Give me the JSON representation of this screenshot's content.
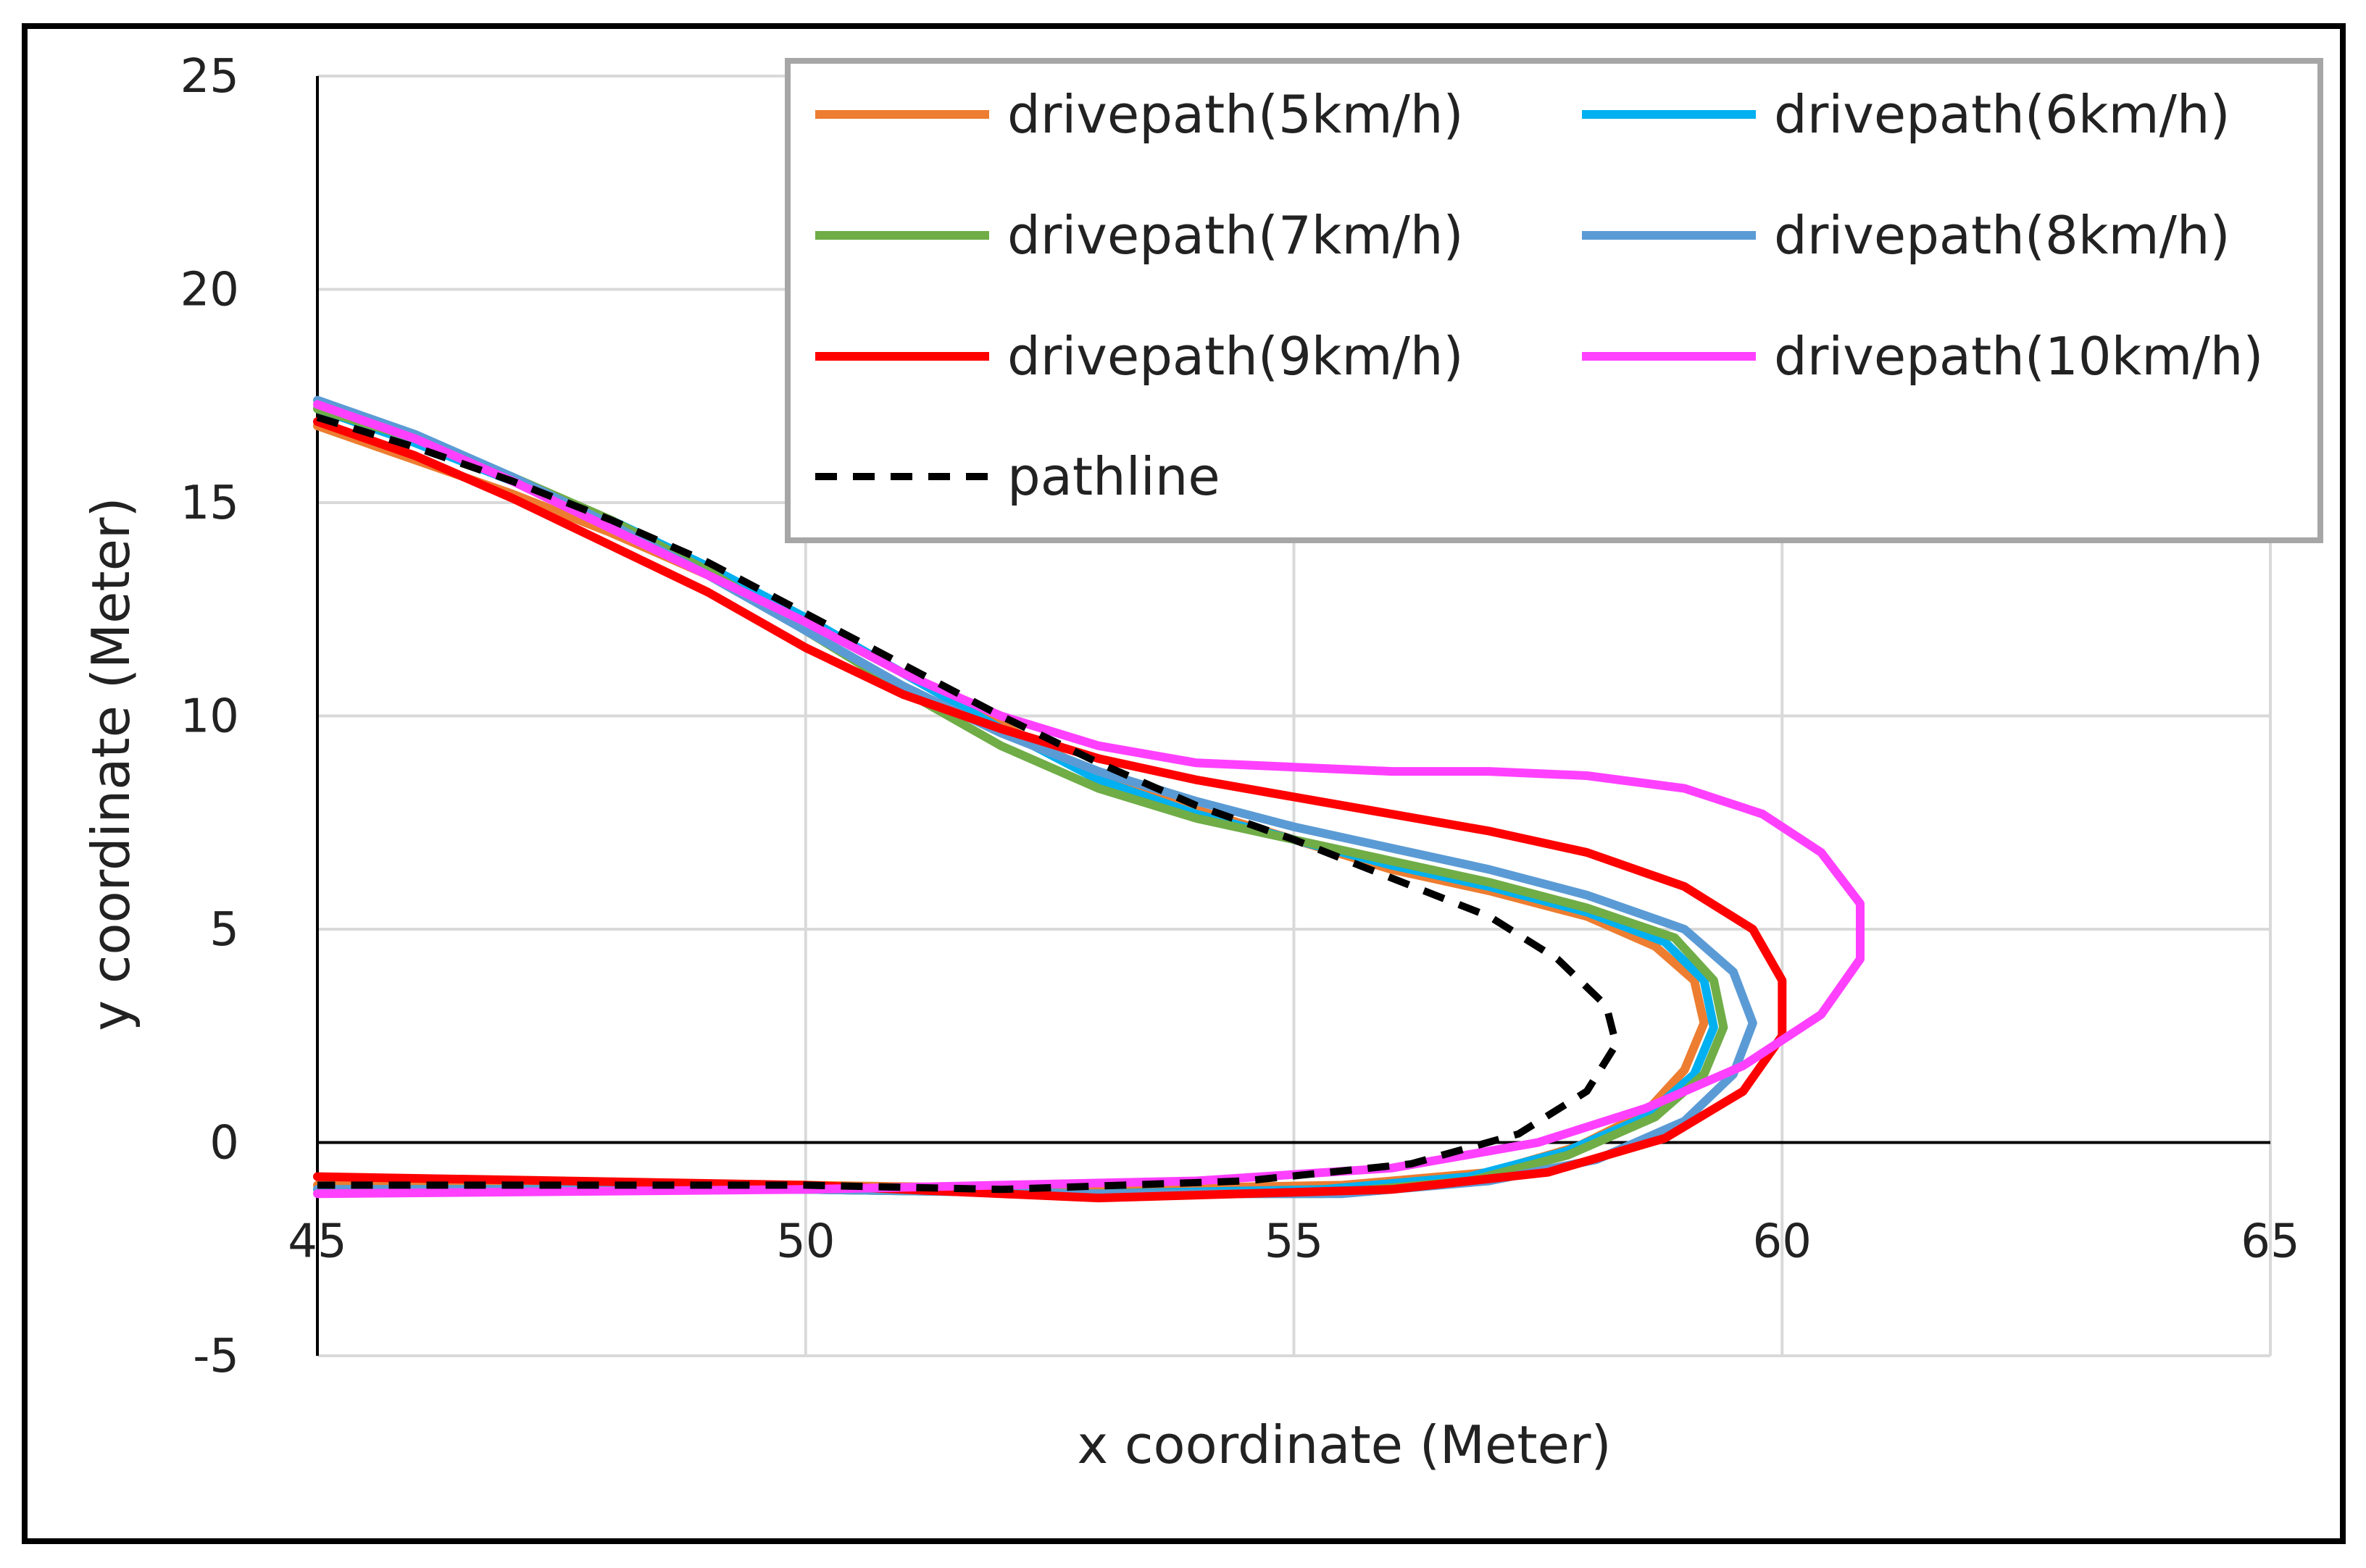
{
  "chart_data": {
    "type": "line",
    "title": "",
    "xlabel": "x coordinate (Meter)",
    "ylabel": "y coordinate (Meter)",
    "xlim": [
      45,
      65
    ],
    "ylim": [
      -5,
      25
    ],
    "xticks": [
      45,
      50,
      55,
      60,
      65
    ],
    "yticks": [
      -5,
      0,
      5,
      10,
      15,
      20,
      25
    ],
    "grid": true,
    "legend_position": "top-right",
    "series": [
      {
        "name": "drivepath(5km/h)",
        "color": "#ED7D31",
        "dash": false,
        "points": [
          [
            45,
            16.8
          ],
          [
            46,
            16.0
          ],
          [
            47,
            15.2
          ],
          [
            48,
            14.3
          ],
          [
            49,
            13.3
          ],
          [
            50,
            12.2
          ],
          [
            51,
            11.0
          ],
          [
            52,
            9.8
          ],
          [
            53,
            8.6
          ],
          [
            54,
            7.8
          ],
          [
            55,
            7.1
          ],
          [
            56,
            6.4
          ],
          [
            57,
            5.9
          ],
          [
            58,
            5.3
          ],
          [
            58.7,
            4.6
          ],
          [
            59.1,
            3.8
          ],
          [
            59.2,
            2.8
          ],
          [
            59.0,
            1.7
          ],
          [
            58.6,
            0.7
          ],
          [
            57.9,
            -0.1
          ],
          [
            57.0,
            -0.7
          ],
          [
            55.5,
            -1.0
          ],
          [
            53,
            -1.1
          ],
          [
            50,
            -1.0
          ],
          [
            45,
            -1.0
          ]
        ]
      },
      {
        "name": "drivepath(6km/h)",
        "color": "#00B0F0",
        "dash": false,
        "points": [
          [
            45,
            17.2
          ],
          [
            46,
            16.4
          ],
          [
            47,
            15.5
          ],
          [
            48,
            14.6
          ],
          [
            49,
            13.5
          ],
          [
            50,
            12.3
          ],
          [
            51,
            11.0
          ],
          [
            52,
            9.7
          ],
          [
            53,
            8.5
          ],
          [
            54,
            7.7
          ],
          [
            55,
            7.1
          ],
          [
            56,
            6.5
          ],
          [
            57,
            6.0
          ],
          [
            58,
            5.4
          ],
          [
            58.8,
            4.7
          ],
          [
            59.2,
            3.8
          ],
          [
            59.3,
            2.7
          ],
          [
            59.1,
            1.6
          ],
          [
            58.6,
            0.6
          ],
          [
            57.8,
            -0.2
          ],
          [
            56.8,
            -0.8
          ],
          [
            55.3,
            -1.1
          ],
          [
            53,
            -1.2
          ],
          [
            50,
            -1.1
          ],
          [
            45,
            -1.1
          ]
        ]
      },
      {
        "name": "drivepath(7km/h)",
        "color": "#70AD47",
        "dash": false,
        "points": [
          [
            45,
            17.2
          ],
          [
            46,
            16.5
          ],
          [
            47,
            15.6
          ],
          [
            48,
            14.6
          ],
          [
            49,
            13.4
          ],
          [
            50,
            12.0
          ],
          [
            51,
            10.6
          ],
          [
            52,
            9.3
          ],
          [
            53,
            8.3
          ],
          [
            54,
            7.6
          ],
          [
            55,
            7.1
          ],
          [
            56,
            6.6
          ],
          [
            57,
            6.1
          ],
          [
            58,
            5.5
          ],
          [
            58.9,
            4.8
          ],
          [
            59.3,
            3.8
          ],
          [
            59.4,
            2.7
          ],
          [
            59.2,
            1.6
          ],
          [
            58.7,
            0.6
          ],
          [
            57.8,
            -0.3
          ],
          [
            56.8,
            -0.9
          ],
          [
            55.3,
            -1.2
          ],
          [
            53,
            -1.2
          ],
          [
            50,
            -1.1
          ],
          [
            45,
            -1.1
          ]
        ]
      },
      {
        "name": "drivepath(8km/h)",
        "color": "#5B9BD5",
        "dash": false,
        "points": [
          [
            45,
            17.4
          ],
          [
            46,
            16.6
          ],
          [
            47,
            15.6
          ],
          [
            48,
            14.5
          ],
          [
            49,
            13.3
          ],
          [
            50,
            12.0
          ],
          [
            51,
            10.7
          ],
          [
            52,
            9.6
          ],
          [
            53,
            8.7
          ],
          [
            54,
            8.0
          ],
          [
            55,
            7.4
          ],
          [
            56,
            6.9
          ],
          [
            57,
            6.4
          ],
          [
            58,
            5.8
          ],
          [
            59,
            5.0
          ],
          [
            59.5,
            4.0
          ],
          [
            59.7,
            2.8
          ],
          [
            59.5,
            1.6
          ],
          [
            59.0,
            0.5
          ],
          [
            58.1,
            -0.4
          ],
          [
            57.0,
            -0.9
          ],
          [
            55.5,
            -1.2
          ],
          [
            53,
            -1.2
          ],
          [
            50,
            -1.1
          ],
          [
            45,
            -1.1
          ]
        ]
      },
      {
        "name": "drivepath(9km/h)",
        "color": "#FF0000",
        "dash": false,
        "points": [
          [
            45,
            16.9
          ],
          [
            46,
            16.1
          ],
          [
            47,
            15.1
          ],
          [
            48,
            14.0
          ],
          [
            49,
            12.9
          ],
          [
            50,
            11.6
          ],
          [
            51,
            10.5
          ],
          [
            52,
            9.7
          ],
          [
            53,
            9.0
          ],
          [
            54,
            8.5
          ],
          [
            55,
            8.1
          ],
          [
            56,
            7.7
          ],
          [
            57,
            7.3
          ],
          [
            58,
            6.8
          ],
          [
            59,
            6.0
          ],
          [
            59.7,
            5.0
          ],
          [
            60.0,
            3.8
          ],
          [
            60.0,
            2.5
          ],
          [
            59.6,
            1.2
          ],
          [
            58.8,
            0.1
          ],
          [
            57.6,
            -0.7
          ],
          [
            56,
            -1.1
          ],
          [
            53,
            -1.3
          ],
          [
            50,
            -1.0
          ],
          [
            45,
            -0.8
          ]
        ]
      },
      {
        "name": "drivepath(10km/h)",
        "color": "#FF40FF",
        "dash": false,
        "points": [
          [
            45,
            17.3
          ],
          [
            46,
            16.5
          ],
          [
            47,
            15.5
          ],
          [
            48,
            14.4
          ],
          [
            49,
            13.3
          ],
          [
            50,
            12.2
          ],
          [
            51,
            11.0
          ],
          [
            52,
            10.0
          ],
          [
            53,
            9.3
          ],
          [
            54,
            8.9
          ],
          [
            55,
            8.8
          ],
          [
            56,
            8.7
          ],
          [
            57,
            8.7
          ],
          [
            58,
            8.6
          ],
          [
            59,
            8.3
          ],
          [
            59.8,
            7.7
          ],
          [
            60.4,
            6.8
          ],
          [
            60.8,
            5.6
          ],
          [
            60.8,
            4.3
          ],
          [
            60.4,
            3.0
          ],
          [
            59.6,
            1.8
          ],
          [
            58.6,
            0.8
          ],
          [
            57.5,
            0.0
          ],
          [
            56,
            -0.6
          ],
          [
            54,
            -0.9
          ],
          [
            52,
            -1.0
          ],
          [
            50,
            -1.1
          ],
          [
            45,
            -1.2
          ]
        ]
      },
      {
        "name": "pathline",
        "color": "#000000",
        "dash": true,
        "points": [
          [
            45,
            17.0
          ],
          [
            46,
            16.3
          ],
          [
            47,
            15.5
          ],
          [
            48,
            14.6
          ],
          [
            49,
            13.6
          ],
          [
            50,
            12.4
          ],
          [
            51,
            11.2
          ],
          [
            52,
            10.0
          ],
          [
            53,
            8.9
          ],
          [
            54,
            7.9
          ],
          [
            55,
            7.1
          ],
          [
            56,
            6.2
          ],
          [
            57,
            5.3
          ],
          [
            57.7,
            4.3
          ],
          [
            58.2,
            3.2
          ],
          [
            58.3,
            2.3
          ],
          [
            58.0,
            1.2
          ],
          [
            57.3,
            0.2
          ],
          [
            56.2,
            -0.5
          ],
          [
            54.5,
            -0.9
          ],
          [
            52,
            -1.1
          ],
          [
            50,
            -1.0
          ],
          [
            45,
            -1.0
          ]
        ]
      }
    ]
  }
}
